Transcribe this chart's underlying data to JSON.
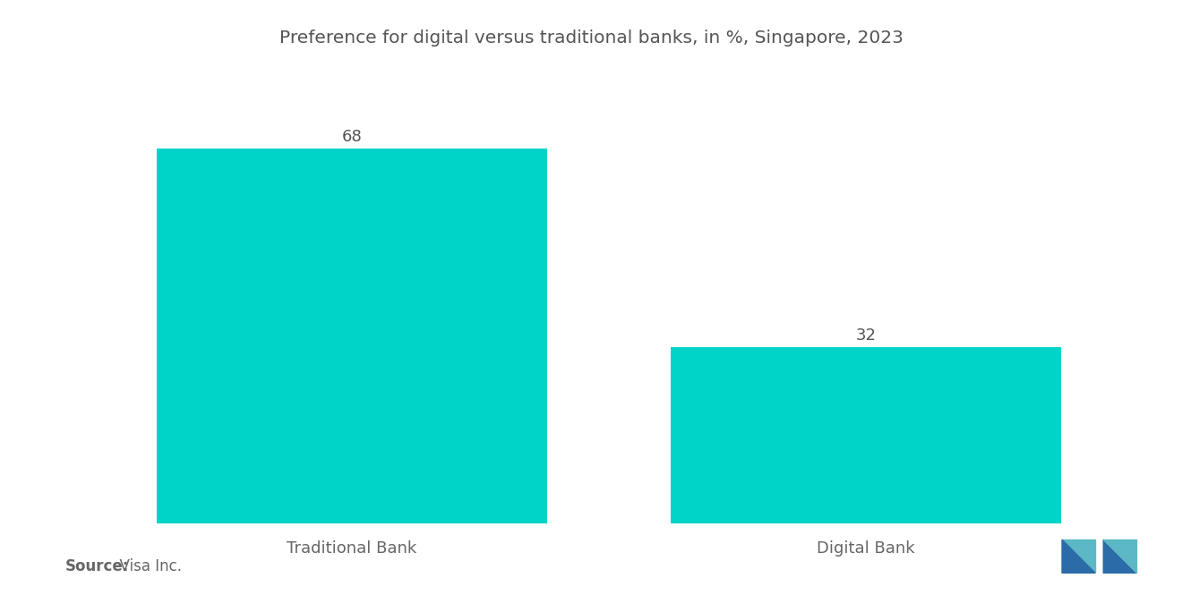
{
  "title": "Preference for digital versus traditional banks, in %, Singapore, 2023",
  "categories": [
    "Traditional Bank",
    "Digital Bank"
  ],
  "values": [
    68,
    32
  ],
  "bar_color": "#00D4C8",
  "background_color": "#FFFFFF",
  "title_color": "#555555",
  "label_color": "#666666",
  "value_color": "#555555",
  "source_label_bold": "Source:",
  "source_label_rest": "  Visa Inc.",
  "title_fontsize": 14.5,
  "label_fontsize": 13,
  "value_fontsize": 13,
  "source_fontsize": 12,
  "ylim": [
    0,
    82
  ],
  "bar_width": 0.38,
  "x_positions": [
    0.25,
    0.75
  ],
  "xlim": [
    0,
    1
  ]
}
